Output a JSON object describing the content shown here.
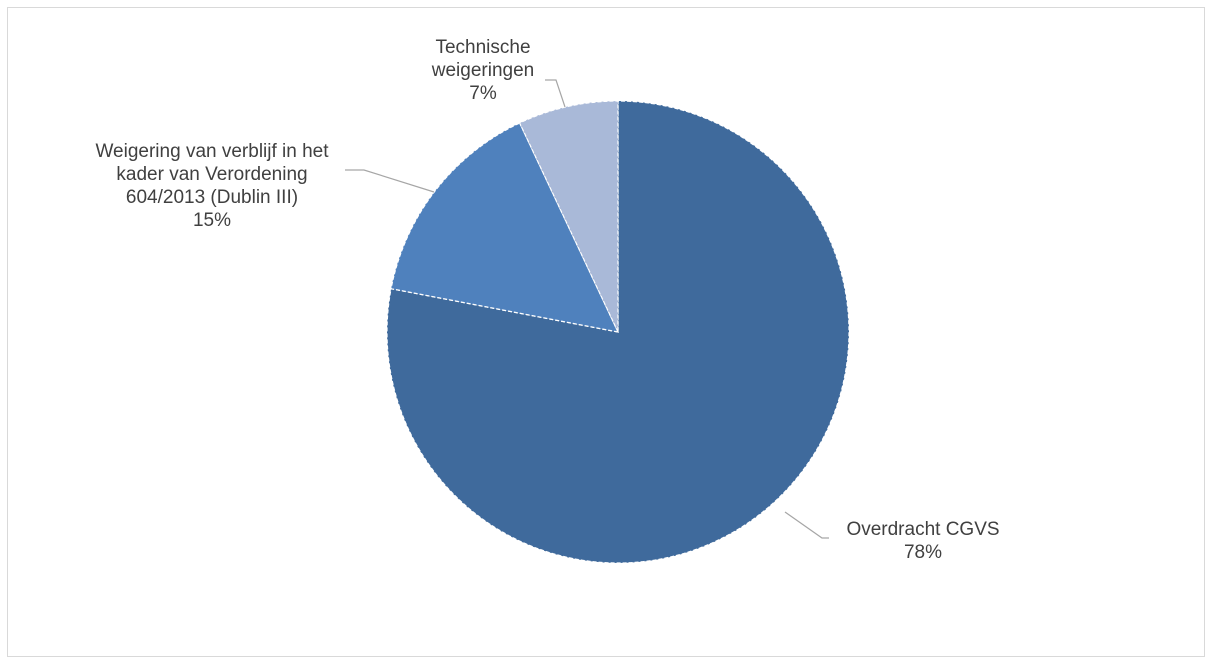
{
  "chart_data": {
    "type": "pie",
    "slices": [
      {
        "name": "Overdracht CGVS",
        "value": 78,
        "label_value": "78%",
        "color": "#3f6a9c",
        "label_lines": [
          "Overdracht CGVS"
        ]
      },
      {
        "name": "Weigering van verblijf in het kader van Verordening 604/2013 (Dublin III)",
        "value": 15,
        "label_value": "15%",
        "color": "#4f81bd",
        "label_lines": [
          "Weigering van verblijf in het",
          "kader van Verordening",
          "604/2013 (Dublin III)"
        ]
      },
      {
        "name": "Technische weigeringen",
        "value": 7,
        "label_value": "7%",
        "color": "#a9b9d8",
        "label_lines": [
          "Technische",
          "weigeringen"
        ]
      }
    ],
    "start": "12 o'clock",
    "direction": "clockwise",
    "legend": "none",
    "border_color": "#d9d9d9",
    "label_color": "#404040",
    "leader_line_color": "#a6a6a6"
  }
}
